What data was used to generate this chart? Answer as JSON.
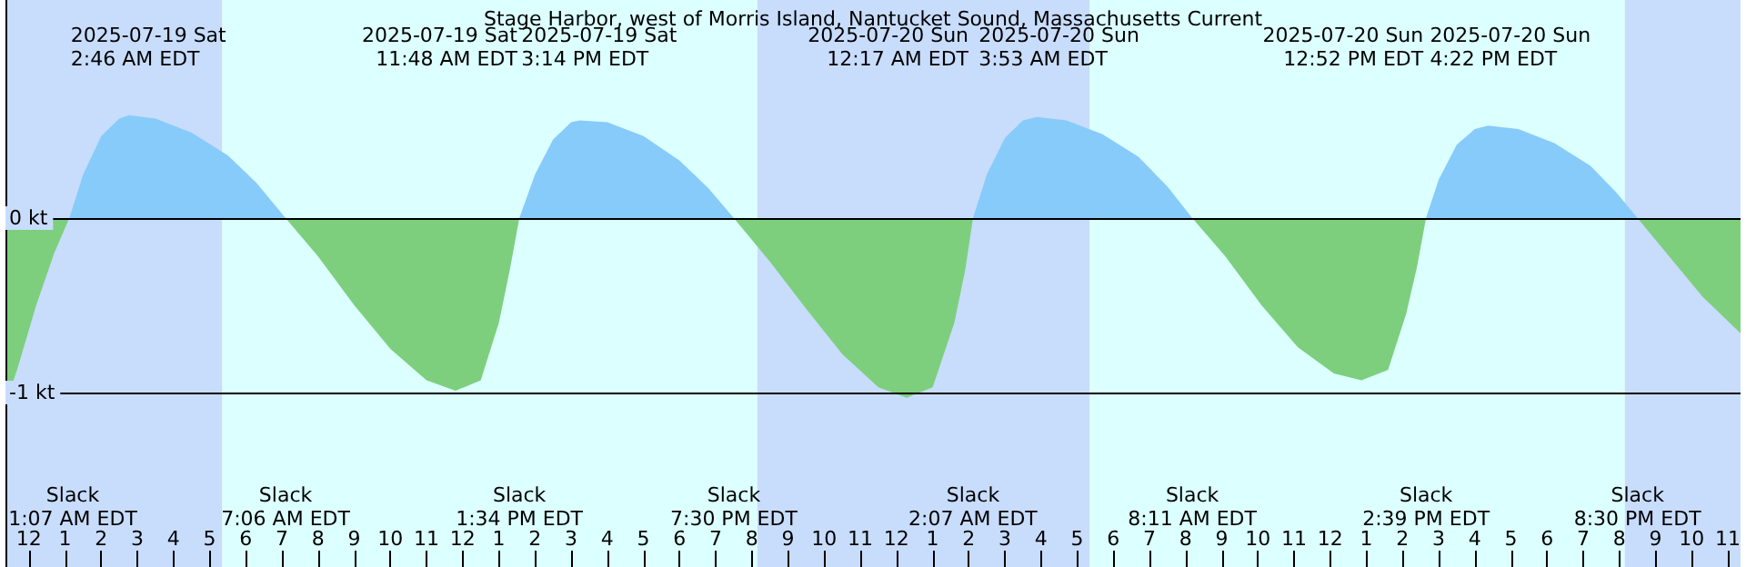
{
  "chart_data": {
    "type": "area",
    "title": "Stage Harbor, west of Morris Island, Nantucket Sound, Massachusetts Current",
    "series": [
      {
        "color": "#87cbfa",
        "x": [
          "2025-07-19T01:07",
          "2025-07-19T01:30",
          "2025-07-19T02:00",
          "2025-07-19T02:30",
          "2025-07-19T02:46",
          "2025-07-19T03:30",
          "2025-07-19T04:30",
          "2025-07-19T05:30",
          "2025-07-19T06:18",
          "2025-07-19T07:06",
          "2025-07-19T13:34",
          "2025-07-19T14:00",
          "2025-07-19T14:30",
          "2025-07-19T15:00",
          "2025-07-19T15:14",
          "2025-07-19T16:00",
          "2025-07-19T17:00",
          "2025-07-19T18:00",
          "2025-07-19T18:48",
          "2025-07-19T19:30",
          "2025-07-20T02:07",
          "2025-07-20T02:30",
          "2025-07-20T03:00",
          "2025-07-20T03:30",
          "2025-07-20T03:53",
          "2025-07-20T04:42",
          "2025-07-20T05:42",
          "2025-07-20T06:42",
          "2025-07-20T07:30",
          "2025-07-20T08:11",
          "2025-07-20T14:39",
          "2025-07-20T15:00",
          "2025-07-20T15:30",
          "2025-07-20T16:00",
          "2025-07-20T16:22",
          "2025-07-20T17:12",
          "2025-07-20T18:12",
          "2025-07-20T19:12",
          "2025-07-20T19:54",
          "2025-07-20T20:30"
        ],
        "values": [
          0,
          0.25,
          0.47,
          0.57,
          0.59,
          0.57,
          0.49,
          0.36,
          0.2,
          0,
          0,
          0.25,
          0.45,
          0.55,
          0.56,
          0.55,
          0.47,
          0.33,
          0.17,
          0,
          0,
          0.25,
          0.46,
          0.56,
          0.58,
          0.56,
          0.48,
          0.35,
          0.18,
          0,
          0,
          0.22,
          0.42,
          0.51,
          0.53,
          0.51,
          0.43,
          0.3,
          0.15,
          0
        ]
      },
      {
        "color": "#7dcf7d",
        "x": [
          "2025-07-18T23:21",
          "2025-07-18T23:42",
          "2025-07-19T00:12",
          "2025-07-19T00:42",
          "2025-07-19T01:07",
          "2025-07-19T07:06",
          "2025-07-19T08:00",
          "2025-07-19T09:00",
          "2025-07-19T10:00",
          "2025-07-19T11:00",
          "2025-07-19T11:48",
          "2025-07-19T12:30",
          "2025-07-19T13:00",
          "2025-07-19T13:18",
          "2025-07-19T13:34",
          "2025-07-19T19:30",
          "2025-07-19T20:30",
          "2025-07-19T21:30",
          "2025-07-19T22:30",
          "2025-07-19T23:30",
          "2025-07-20T00:17",
          "2025-07-20T01:00",
          "2025-07-20T01:36",
          "2025-07-20T01:54",
          "2025-07-20T02:07",
          "2025-07-20T08:11",
          "2025-07-20T09:06",
          "2025-07-20T10:06",
          "2025-07-20T11:06",
          "2025-07-20T12:06",
          "2025-07-20T12:52",
          "2025-07-20T13:36",
          "2025-07-20T14:06",
          "2025-07-20T14:24",
          "2025-07-20T14:39",
          "2025-07-20T20:30",
          "2025-07-20T21:18",
          "2025-07-20T22:18",
          "2025-07-20T23:21"
        ],
        "values": [
          -1.07,
          -0.85,
          -0.5,
          -0.2,
          0,
          0,
          -0.22,
          -0.5,
          -0.75,
          -0.93,
          -0.99,
          -0.93,
          -0.6,
          -0.3,
          0,
          0,
          -0.25,
          -0.52,
          -0.78,
          -0.97,
          -1.03,
          -0.97,
          -0.6,
          -0.3,
          0,
          0,
          -0.22,
          -0.5,
          -0.74,
          -0.89,
          -0.93,
          -0.87,
          -0.55,
          -0.28,
          0,
          0,
          -0.2,
          -0.45,
          -0.66
        ]
      }
    ],
    "xlim": [
      "2025-07-18T23:21",
      "2025-07-20T23:21"
    ],
    "xticks": [
      {
        "value": "2025-07-19T00:00",
        "label": "12"
      },
      {
        "value": "2025-07-19T01:00",
        "label": "1"
      },
      {
        "value": "2025-07-19T02:00",
        "label": "2"
      },
      {
        "value": "2025-07-19T03:00",
        "label": "3"
      },
      {
        "value": "2025-07-19T04:00",
        "label": "4"
      },
      {
        "value": "2025-07-19T05:00",
        "label": "5"
      },
      {
        "value": "2025-07-19T06:00",
        "label": "6"
      },
      {
        "value": "2025-07-19T07:00",
        "label": "7"
      },
      {
        "value": "2025-07-19T08:00",
        "label": "8"
      },
      {
        "value": "2025-07-19T09:00",
        "label": "9"
      },
      {
        "value": "2025-07-19T10:00",
        "label": "10"
      },
      {
        "value": "2025-07-19T11:00",
        "label": "11"
      },
      {
        "value": "2025-07-19T12:00",
        "label": "12"
      },
      {
        "value": "2025-07-19T13:00",
        "label": "1"
      },
      {
        "value": "2025-07-19T14:00",
        "label": "2"
      },
      {
        "value": "2025-07-19T15:00",
        "label": "3"
      },
      {
        "value": "2025-07-19T16:00",
        "label": "4"
      },
      {
        "value": "2025-07-19T17:00",
        "label": "5"
      },
      {
        "value": "2025-07-19T18:00",
        "label": "6"
      },
      {
        "value": "2025-07-19T19:00",
        "label": "7"
      },
      {
        "value": "2025-07-19T20:00",
        "label": "8"
      },
      {
        "value": "2025-07-19T21:00",
        "label": "9"
      },
      {
        "value": "2025-07-19T22:00",
        "label": "10"
      },
      {
        "value": "2025-07-19T23:00",
        "label": "11"
      },
      {
        "value": "2025-07-20T00:00",
        "label": "12"
      },
      {
        "value": "2025-07-20T01:00",
        "label": "1"
      },
      {
        "value": "2025-07-20T02:00",
        "label": "2"
      },
      {
        "value": "2025-07-20T03:00",
        "label": "3"
      },
      {
        "value": "2025-07-20T04:00",
        "label": "4"
      },
      {
        "value": "2025-07-20T05:00",
        "label": "5"
      },
      {
        "value": "2025-07-20T06:00",
        "label": "6"
      },
      {
        "value": "2025-07-20T07:00",
        "label": "7"
      },
      {
        "value": "2025-07-20T08:00",
        "label": "8"
      },
      {
        "value": "2025-07-20T09:00",
        "label": "9"
      },
      {
        "value": "2025-07-20T10:00",
        "label": "10"
      },
      {
        "value": "2025-07-20T11:00",
        "label": "11"
      },
      {
        "value": "2025-07-20T12:00",
        "label": "12"
      },
      {
        "value": "2025-07-20T13:00",
        "label": "1"
      },
      {
        "value": "2025-07-20T14:00",
        "label": "2"
      },
      {
        "value": "2025-07-20T15:00",
        "label": "3"
      },
      {
        "value": "2025-07-20T16:00",
        "label": "4"
      },
      {
        "value": "2025-07-20T17:00",
        "label": "5"
      },
      {
        "value": "2025-07-20T18:00",
        "label": "6"
      },
      {
        "value": "2025-07-20T19:00",
        "label": "7"
      },
      {
        "value": "2025-07-20T20:00",
        "label": "8"
      },
      {
        "value": "2025-07-20T21:00",
        "label": "9"
      },
      {
        "value": "2025-07-20T22:00",
        "label": "10"
      },
      {
        "value": "2025-07-20T23:00",
        "label": "11"
      }
    ],
    "ylim": [
      -2,
      1.25
    ],
    "yticks": [
      {
        "value": 0,
        "label": "0 kt"
      },
      {
        "value": -1,
        "label": "-1 kt"
      }
    ],
    "grid": "y",
    "bands": [
      {
        "axis": "x",
        "from": "2025-07-18T23:21",
        "to": "2025-07-19T05:21",
        "color": "#c8dcfc"
      },
      {
        "axis": "x",
        "from": "2025-07-19T05:21",
        "to": "2025-07-19T20:09",
        "color": "#dcffff"
      },
      {
        "axis": "x",
        "from": "2025-07-19T20:09",
        "to": "2025-07-20T05:21",
        "color": "#c8dcfc"
      },
      {
        "axis": "x",
        "from": "2025-07-20T05:21",
        "to": "2025-07-20T20:09",
        "color": "#dcffff"
      },
      {
        "axis": "x",
        "from": "2025-07-20T20:09",
        "to": "2025-07-20T23:21",
        "color": "#c8dcfc"
      }
    ],
    "annotations": [
      "2025-07-19 Sat\n2:46 AM EDT",
      "2025-07-19 Sat\n11:48 AM EDT",
      "2025-07-19 Sat\n3:14 PM EDT",
      "2025-07-20 Sun\n12:17 AM EDT",
      "2025-07-20 Sun\n3:53 AM EDT",
      "2025-07-20 Sun\n12:52 PM EDT",
      "2025-07-20 Sun\n4:22 PM EDT",
      "Slack\n1:07 AM EDT",
      "Slack\n7:06 AM EDT",
      "Slack\n1:34 PM EDT",
      "Slack\n7:30 PM EDT",
      "Slack\n2:07 AM EDT",
      "Slack\n8:11 AM EDT",
      "Slack\n2:39 PM EDT",
      "Slack\n8:30 PM EDT"
    ]
  }
}
